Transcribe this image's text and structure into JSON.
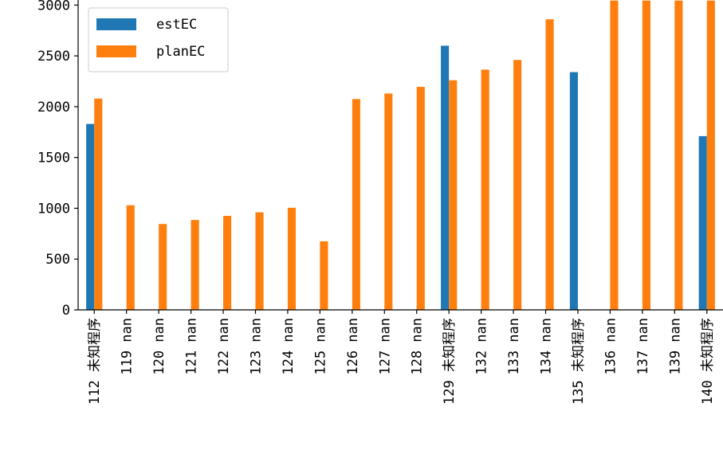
{
  "chart_data": {
    "type": "bar",
    "title": "",
    "xlabel": "",
    "ylabel": "",
    "categories": [
      "112 未知程序",
      "119 nan",
      "120 nan",
      "121 nan",
      "122 nan",
      "123 nan",
      "124 nan",
      "125 nan",
      "126 nan",
      "127 nan",
      "128 nan",
      "129 未知程序",
      "132 nan",
      "133 nan",
      "134 nan",
      "135 未知程序",
      "136 nan",
      "137 nan",
      "139 nan",
      "140 未知程序"
    ],
    "series": [
      {
        "name": "estEC",
        "color": "#1f77b4",
        "values": [
          1830,
          0,
          0,
          0,
          0,
          0,
          0,
          0,
          0,
          0,
          0,
          2600,
          0,
          0,
          0,
          2340,
          0,
          0,
          0,
          1710
        ]
      },
      {
        "name": "planEC",
        "color": "#ff7f0e",
        "values": [
          2080,
          1030,
          845,
          885,
          925,
          960,
          1005,
          675,
          2075,
          2130,
          2195,
          2260,
          2365,
          2460,
          2860,
          0,
          3045,
          3045,
          3045,
          3045
        ]
      }
    ],
    "ylim": [
      0,
      3050
    ],
    "yticks": [
      0,
      500,
      1000,
      1500,
      2000,
      2500,
      3000
    ],
    "legend": {
      "position": "top-left"
    },
    "grid": false
  }
}
